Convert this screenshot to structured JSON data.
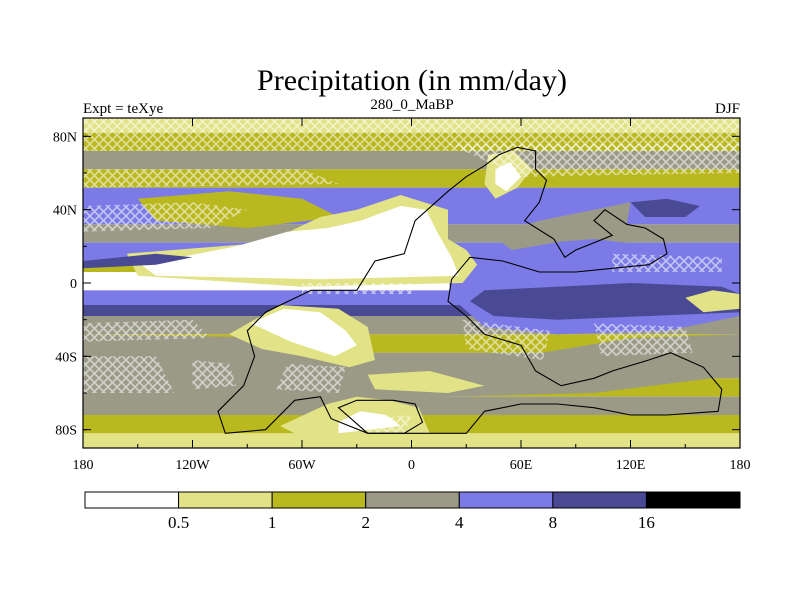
{
  "chart_data": {
    "type": "heatmap",
    "title": "Precipitation (in mm/day)",
    "left_label": "Expt = teXye",
    "center_label": "280_0_MaBP",
    "right_label": "DJF",
    "x_ticks": [
      "180",
      "120W",
      "60W",
      "0",
      "60E",
      "120E",
      "180"
    ],
    "y_ticks": [
      "80N",
      "40N",
      "0",
      "40S",
      "80S"
    ],
    "xlim": [
      -180,
      180
    ],
    "ylim": [
      -90,
      90
    ],
    "colorbar": {
      "levels": [
        "0.5",
        "1",
        "2",
        "4",
        "8",
        "16"
      ],
      "colors": [
        "#ffffff",
        "#e2e287",
        "#b9b81e",
        "#9b9a87",
        "#7b7ae6",
        "#4a4994",
        "#000000"
      ]
    },
    "bands": [
      {
        "lat": [
          82,
          90
        ],
        "cat": 1
      },
      {
        "lat": [
          72,
          82
        ],
        "cat": 2
      },
      {
        "lat": [
          62,
          72
        ],
        "cat": 3
      },
      {
        "lat": [
          52,
          62
        ],
        "cat": 2
      },
      {
        "lat": [
          32,
          52
        ],
        "cat": 4
      },
      {
        "lat": [
          22,
          32
        ],
        "cat": 3
      },
      {
        "lat": [
          12,
          22
        ],
        "cat": 4
      },
      {
        "lat": [
          6,
          12
        ],
        "cat": 2
      },
      {
        "lat": [
          -4,
          6
        ],
        "cat": 0
      },
      {
        "lat": [
          -12,
          -4
        ],
        "cat": 4
      },
      {
        "lat": [
          -18,
          -12
        ],
        "cat": 5
      },
      {
        "lat": [
          -28,
          -18
        ],
        "cat": 3
      },
      {
        "lat": [
          -38,
          -28
        ],
        "cat": 2
      },
      {
        "lat": [
          -52,
          -38
        ],
        "cat": 3
      },
      {
        "lat": [
          -62,
          -52
        ],
        "cat": 2
      },
      {
        "lat": [
          -72,
          -62
        ],
        "cat": 3
      },
      {
        "lat": [
          -82,
          -72
        ],
        "cat": 2
      },
      {
        "lat": [
          -90,
          -82
        ],
        "cat": 1
      }
    ],
    "regions": [
      {
        "cat": 3,
        "poly": [
          [
            -180,
            -28
          ],
          [
            -60,
            -30
          ],
          [
            -40,
            -30
          ],
          [
            -20,
            -40
          ],
          [
            60,
            -40
          ],
          [
            120,
            -30
          ],
          [
            180,
            -28
          ],
          [
            180,
            -50
          ],
          [
            100,
            -60
          ],
          [
            20,
            -62
          ],
          [
            -40,
            -66
          ],
          [
            -180,
            -62
          ]
        ]
      },
      {
        "cat": 4,
        "poly": [
          [
            30,
            10
          ],
          [
            50,
            20
          ],
          [
            100,
            24
          ],
          [
            150,
            18
          ],
          [
            180,
            14
          ],
          [
            180,
            -18
          ],
          [
            140,
            -26
          ],
          [
            80,
            -28
          ],
          [
            40,
            -24
          ],
          [
            22,
            -8
          ],
          [
            20,
            4
          ]
        ]
      },
      {
        "cat": 5,
        "poly": [
          [
            40,
            -4
          ],
          [
            80,
            -2
          ],
          [
            120,
            0
          ],
          [
            170,
            -2
          ],
          [
            180,
            -6
          ],
          [
            180,
            -16
          ],
          [
            130,
            -18
          ],
          [
            80,
            -20
          ],
          [
            45,
            -18
          ],
          [
            32,
            -10
          ]
        ]
      },
      {
        "cat": 3,
        "poly": [
          [
            44,
            26
          ],
          [
            70,
            34
          ],
          [
            100,
            40
          ],
          [
            120,
            44
          ],
          [
            118,
            32
          ],
          [
            90,
            24
          ],
          [
            55,
            18
          ]
        ]
      },
      {
        "cat": 2,
        "poly": [
          [
            -150,
            46
          ],
          [
            -100,
            50
          ],
          [
            -60,
            46
          ],
          [
            -40,
            36
          ],
          [
            -90,
            30
          ],
          [
            -140,
            34
          ]
        ]
      },
      {
        "cat": 1,
        "poly": [
          [
            -156,
            16
          ],
          [
            -80,
            22
          ],
          [
            -50,
            36
          ],
          [
            -30,
            40
          ],
          [
            -6,
            48
          ],
          [
            20,
            40
          ],
          [
            20,
            24
          ],
          [
            30,
            18
          ],
          [
            36,
            10
          ],
          [
            28,
            0
          ],
          [
            -60,
            -2
          ],
          [
            -150,
            4
          ]
        ]
      },
      {
        "cat": 0,
        "poly": [
          [
            -148,
            10
          ],
          [
            -96,
            20
          ],
          [
            -68,
            28
          ],
          [
            -46,
            30
          ],
          [
            -28,
            34
          ],
          [
            -6,
            42
          ],
          [
            8,
            40
          ],
          [
            14,
            28
          ],
          [
            22,
            14
          ],
          [
            26,
            4
          ],
          [
            -50,
            2
          ],
          [
            -140,
            4
          ]
        ]
      },
      {
        "cat": 1,
        "poly": [
          [
            -100,
            -28
          ],
          [
            -72,
            -12
          ],
          [
            -40,
            -14
          ],
          [
            -24,
            -24
          ],
          [
            -20,
            -42
          ],
          [
            -34,
            -46
          ],
          [
            -60,
            -40
          ],
          [
            -82,
            -36
          ]
        ]
      },
      {
        "cat": 0,
        "poly": [
          [
            -88,
            -22
          ],
          [
            -70,
            -14
          ],
          [
            -50,
            -16
          ],
          [
            -36,
            -26
          ],
          [
            -30,
            -34
          ],
          [
            -42,
            -40
          ],
          [
            -66,
            -32
          ]
        ]
      },
      {
        "cat": 1,
        "poly": [
          [
            -46,
            -66
          ],
          [
            -30,
            -62
          ],
          [
            -12,
            -64
          ],
          [
            4,
            -68
          ],
          [
            10,
            -82
          ],
          [
            -60,
            -84
          ],
          [
            -72,
            -78
          ]
        ]
      },
      {
        "cat": 0,
        "poly": [
          [
            -40,
            -76
          ],
          [
            -28,
            -70
          ],
          [
            -14,
            -72
          ],
          [
            -6,
            -78
          ],
          [
            -40,
            -82
          ]
        ]
      },
      {
        "cat": 1,
        "poly": [
          [
            42,
            70
          ],
          [
            56,
            72
          ],
          [
            66,
            62
          ],
          [
            58,
            52
          ],
          [
            46,
            46
          ],
          [
            40,
            54
          ]
        ]
      },
      {
        "cat": 0,
        "poly": [
          [
            46,
            62
          ],
          [
            54,
            66
          ],
          [
            60,
            58
          ],
          [
            52,
            50
          ],
          [
            46,
            54
          ]
        ]
      },
      {
        "cat": 1,
        "poly": [
          [
            -24,
            -50
          ],
          [
            10,
            -48
          ],
          [
            40,
            -56
          ],
          [
            20,
            -60
          ],
          [
            -20,
            -58
          ]
        ]
      },
      {
        "cat": 1,
        "poly": [
          [
            150,
            -8
          ],
          [
            165,
            -4
          ],
          [
            180,
            -6
          ],
          [
            180,
            -14
          ],
          [
            160,
            -16
          ]
        ]
      },
      {
        "cat": 5,
        "poly": [
          [
            120,
            44
          ],
          [
            140,
            46
          ],
          [
            158,
            42
          ],
          [
            150,
            36
          ],
          [
            128,
            36
          ]
        ]
      },
      {
        "cat": 5,
        "poly": [
          [
            -180,
            12
          ],
          [
            -140,
            16
          ],
          [
            -120,
            14
          ],
          [
            -140,
            10
          ],
          [
            -180,
            8
          ]
        ]
      }
    ],
    "land_outlines": [
      [
        [
          -80,
          -16
        ],
        [
          -55,
          -4
        ],
        [
          -30,
          -4
        ],
        [
          -20,
          12
        ],
        [
          -4,
          16
        ],
        [
          2,
          34
        ],
        [
          20,
          50
        ],
        [
          30,
          58
        ],
        [
          40,
          64
        ],
        [
          48,
          70
        ],
        [
          58,
          74
        ],
        [
          68,
          72
        ],
        [
          68,
          62
        ],
        [
          74,
          56
        ],
        [
          70,
          44
        ],
        [
          62,
          34
        ],
        [
          78,
          24
        ],
        [
          84,
          14
        ],
        [
          90,
          18
        ],
        [
          100,
          22
        ],
        [
          110,
          26
        ],
        [
          100,
          34
        ],
        [
          106,
          40
        ],
        [
          118,
          32
        ],
        [
          128,
          30
        ],
        [
          138,
          24
        ],
        [
          140,
          16
        ],
        [
          130,
          10
        ],
        [
          110,
          8
        ],
        [
          90,
          6
        ],
        [
          70,
          6
        ],
        [
          50,
          12
        ],
        [
          32,
          14
        ],
        [
          22,
          2
        ],
        [
          20,
          -10
        ],
        [
          30,
          -18
        ],
        [
          40,
          -28
        ],
        [
          60,
          -34
        ],
        [
          68,
          -48
        ],
        [
          82,
          -56
        ],
        [
          100,
          -52
        ],
        [
          110,
          -48
        ],
        [
          130,
          -42
        ],
        [
          142,
          -38
        ],
        [
          160,
          -46
        ],
        [
          170,
          -58
        ],
        [
          168,
          -70
        ],
        [
          140,
          -72
        ],
        [
          120,
          -72
        ],
        [
          100,
          -68
        ],
        [
          80,
          -66
        ],
        [
          60,
          -66
        ],
        [
          40,
          -70
        ],
        [
          30,
          -82
        ],
        [
          -24,
          -82
        ],
        [
          -44,
          -74
        ],
        [
          -50,
          -62
        ],
        [
          -64,
          -64
        ],
        [
          -80,
          -80
        ],
        [
          -102,
          -82
        ],
        [
          -106,
          -70
        ],
        [
          -92,
          -56
        ],
        [
          -86,
          -40
        ],
        [
          -90,
          -26
        ]
      ],
      [
        [
          -24,
          -82
        ],
        [
          -4,
          -82
        ],
        [
          6,
          -76
        ],
        [
          2,
          -66
        ],
        [
          -10,
          -64
        ],
        [
          -30,
          -64
        ],
        [
          -40,
          -68
        ]
      ]
    ],
    "hatch_regions": [
      [
        [
          -180,
          90
        ],
        [
          180,
          90
        ],
        [
          180,
          72
        ],
        [
          -180,
          72
        ]
      ],
      [
        [
          -180,
          62
        ],
        [
          -60,
          62
        ],
        [
          -40,
          54
        ],
        [
          -180,
          52
        ]
      ],
      [
        [
          20,
          76
        ],
        [
          180,
          76
        ],
        [
          180,
          60
        ],
        [
          60,
          58
        ]
      ],
      [
        [
          -180,
          42
        ],
        [
          -120,
          44
        ],
        [
          -90,
          40
        ],
        [
          -110,
          30
        ],
        [
          -180,
          28
        ]
      ],
      [
        [
          -60,
          0
        ],
        [
          0,
          0
        ],
        [
          0,
          -6
        ],
        [
          -60,
          -6
        ]
      ],
      [
        [
          -180,
          -22
        ],
        [
          -120,
          -20
        ],
        [
          -110,
          -30
        ],
        [
          -180,
          -32
        ]
      ],
      [
        [
          -180,
          -40
        ],
        [
          -140,
          -40
        ],
        [
          -130,
          -60
        ],
        [
          -180,
          -60
        ]
      ],
      [
        [
          -120,
          -42
        ],
        [
          -100,
          -44
        ],
        [
          -96,
          -56
        ],
        [
          -120,
          -58
        ]
      ],
      [
        [
          -68,
          -44
        ],
        [
          -36,
          -46
        ],
        [
          -40,
          -60
        ],
        [
          -74,
          -58
        ]
      ],
      [
        [
          28,
          -20
        ],
        [
          76,
          -26
        ],
        [
          72,
          -42
        ],
        [
          30,
          -36
        ]
      ],
      [
        [
          100,
          -22
        ],
        [
          150,
          -24
        ],
        [
          154,
          -38
        ],
        [
          104,
          -40
        ]
      ],
      [
        [
          110,
          16
        ],
        [
          170,
          14
        ],
        [
          170,
          6
        ],
        [
          110,
          6
        ]
      ],
      [
        [
          -20,
          -74
        ],
        [
          0,
          -72
        ],
        [
          -4,
          -82
        ],
        [
          -24,
          -82
        ]
      ]
    ]
  }
}
